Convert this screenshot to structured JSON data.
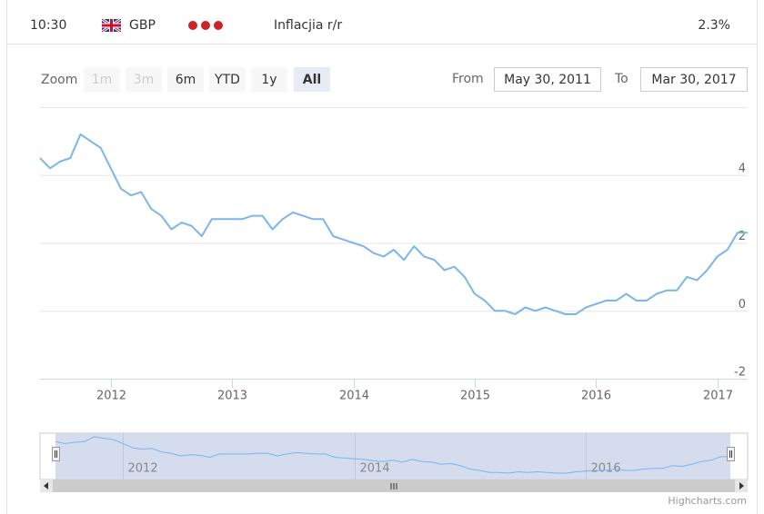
{
  "row": {
    "time": "10:30",
    "currency": "GBP",
    "event": "Inflacjia r/r",
    "value": "2.3%"
  },
  "range_selector": {
    "zoom_label": "Zoom",
    "buttons": [
      {
        "label": "1m",
        "enabled": false
      },
      {
        "label": "3m",
        "enabled": false
      },
      {
        "label": "6m",
        "enabled": true
      },
      {
        "label": "YTD",
        "enabled": true
      },
      {
        "label": "1y",
        "enabled": true
      },
      {
        "label": "All",
        "enabled": true,
        "selected": true
      }
    ],
    "from_label": "From",
    "from": "May 30, 2011",
    "to_label": "To",
    "to": "Mar 30, 2017"
  },
  "chart_data": {
    "type": "line",
    "x": [
      "2011-05",
      "2011-06",
      "2011-07",
      "2011-08",
      "2011-09",
      "2011-10",
      "2011-11",
      "2011-12",
      "2012-01",
      "2012-02",
      "2012-03",
      "2012-04",
      "2012-05",
      "2012-06",
      "2012-07",
      "2012-08",
      "2012-09",
      "2012-10",
      "2012-11",
      "2012-12",
      "2013-01",
      "2013-02",
      "2013-03",
      "2013-04",
      "2013-05",
      "2013-06",
      "2013-07",
      "2013-08",
      "2013-09",
      "2013-10",
      "2013-11",
      "2013-12",
      "2014-01",
      "2014-02",
      "2014-03",
      "2014-04",
      "2014-05",
      "2014-06",
      "2014-07",
      "2014-08",
      "2014-09",
      "2014-10",
      "2014-11",
      "2014-12",
      "2015-01",
      "2015-02",
      "2015-03",
      "2015-04",
      "2015-05",
      "2015-06",
      "2015-07",
      "2015-08",
      "2015-09",
      "2015-10",
      "2015-11",
      "2015-12",
      "2016-01",
      "2016-02",
      "2016-03",
      "2016-04",
      "2016-05",
      "2016-06",
      "2016-07",
      "2016-08",
      "2016-09",
      "2016-10",
      "2016-11",
      "2016-12",
      "2017-01",
      "2017-02",
      "2017-03"
    ],
    "series": [
      {
        "color": "#7cb5ec",
        "values": [
          4.5,
          4.2,
          4.4,
          4.5,
          5.2,
          5.0,
          4.8,
          4.2,
          3.6,
          3.4,
          3.5,
          3.0,
          2.8,
          2.4,
          2.6,
          2.5,
          2.2,
          2.7,
          2.7,
          2.7,
          2.7,
          2.8,
          2.8,
          2.4,
          2.7,
          2.9,
          2.8,
          2.7,
          2.7,
          2.2,
          2.1,
          2.0,
          1.9,
          1.7,
          1.6,
          1.8,
          1.5,
          1.9,
          1.6,
          1.5,
          1.2,
          1.3,
          1.0,
          0.5,
          0.3,
          0.0,
          0.0,
          -0.1,
          0.1,
          0.0,
          0.1,
          0.0,
          -0.1,
          -0.1,
          0.1,
          0.2,
          0.3,
          0.3,
          0.5,
          0.3,
          0.3,
          0.5,
          0.6,
          0.6,
          1.0,
          0.9,
          1.2,
          1.6,
          1.8,
          2.3,
          2.3
        ]
      }
    ],
    "xlim": [
      "2011-05",
      "2017-03"
    ],
    "xticks": [
      2012,
      2013,
      2014,
      2015,
      2016,
      2017
    ],
    "ylim": [
      -2,
      6
    ],
    "yticks": [
      -2,
      0,
      2,
      4
    ],
    "grid": true,
    "navigator_ticks": [
      2012,
      2014,
      2016
    ]
  },
  "credits": "Highcharts.com"
}
